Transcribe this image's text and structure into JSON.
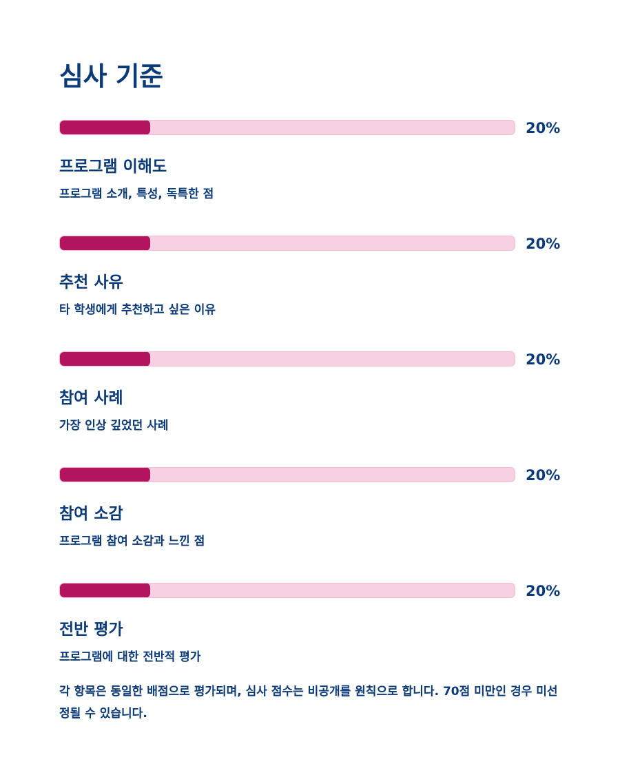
{
  "page": {
    "title": "심사 기준"
  },
  "colors": {
    "heading": "#0b3a78",
    "bar_fill": "#b2145f",
    "bar_track": "#f7d0e3"
  },
  "criteria": [
    {
      "title": "프로그램 이해도",
      "description": "프로그램 소개, 특성, 독특한 점",
      "percent_label": "20%",
      "weight": 0.2
    },
    {
      "title": "추천 사유",
      "description": "타 학생에게 추천하고 싶은 이유",
      "percent_label": "20%",
      "weight": 0.2
    },
    {
      "title": "참여 사례",
      "description": "가장 인상 깊었던 사례",
      "percent_label": "20%",
      "weight": 0.2
    },
    {
      "title": "참여 소감",
      "description": "프로그램 참여 소감과 느낀 점",
      "percent_label": "20%",
      "weight": 0.2
    },
    {
      "title": "전반 평가",
      "description": "프로그램에 대한 전반적 평가",
      "percent_label": "20%",
      "weight": 0.2
    }
  ],
  "footnote": "각 항목은 동일한 배점으로 평가되며, 심사 점수는 비공개를 원칙으로 합니다. 70점 미만인 경우 미선정될 수 있습니다."
}
